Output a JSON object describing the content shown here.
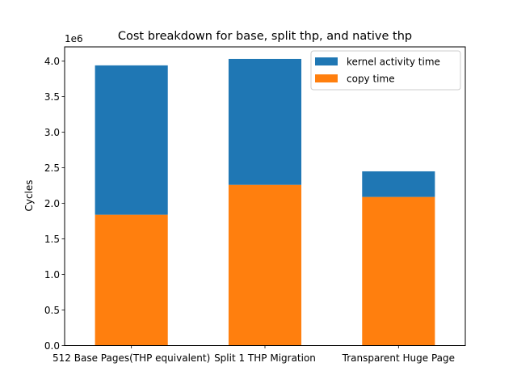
{
  "chart_data": {
    "type": "bar",
    "stacked": true,
    "title": "Cost breakdown for base, split thp, and native thp",
    "xlabel": "",
    "ylabel": "Cycles",
    "y_offset_label": "1e6",
    "y_scale": 1000000,
    "ylim": [
      0,
      4200000
    ],
    "yticks": [
      0,
      500000,
      1000000,
      1500000,
      2000000,
      2500000,
      3000000,
      3500000,
      4000000
    ],
    "ytick_labels": [
      "0.0",
      "0.5",
      "1.0",
      "1.5",
      "2.0",
      "2.5",
      "3.0",
      "3.5",
      "4.0"
    ],
    "grid": false,
    "legend_position": "top-right",
    "categories": [
      "512 Base Pages(THP equivalent)",
      "Split 1 THP Migration",
      "Transparent Huge Page"
    ],
    "series": [
      {
        "name": "copy time",
        "color": "#ff7f0e",
        "values": [
          1840000,
          2260000,
          2090000
        ]
      },
      {
        "name": "kernel activity time",
        "color": "#1f77b4",
        "values": [
          2100000,
          1770000,
          360000
        ]
      }
    ],
    "legend_order": [
      "kernel activity time",
      "copy time"
    ]
  }
}
